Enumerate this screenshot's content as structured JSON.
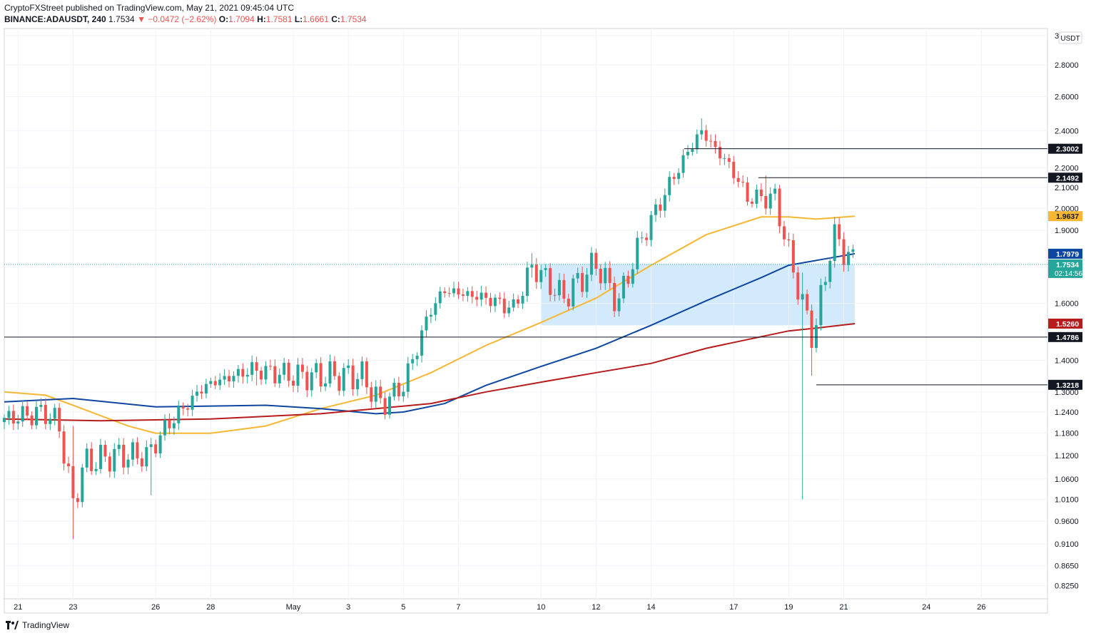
{
  "header": {
    "line1": "CryptoFXStreet published on TradingView.com, May 21, 2021 09:45:04 UTC",
    "symbol": "BINANCE:ADAUSDT, 240",
    "last": "1.7534",
    "change_arrow": "▼",
    "change": "−0.0472 (−2.62%)",
    "o_label": "O:",
    "o": "1.7094",
    "h_label": "H:",
    "h": "1.7581",
    "l_label": "L:",
    "l": "1.6661",
    "c_label": "C:",
    "c": "1.7534"
  },
  "footer": {
    "brand": "TradingView",
    "logo": "tradingview-logo-icon"
  },
  "colors": {
    "up": "#26a69a",
    "down": "#ef5350",
    "ma50": "#f7b733",
    "ma100": "#0d47a1",
    "ma200": "#b71c1c",
    "zone": "#bbdefb",
    "axis_text": "#131722",
    "grid": "#f0f3fa"
  },
  "chart_data": {
    "type": "candlestick",
    "scale": "log",
    "currency_label": "USDT",
    "ylim": [
      0.8,
      3.05
    ],
    "y_ticks": [
      "3.0000",
      "2.8000",
      "2.6000",
      "2.4000",
      "2.2000",
      "2.1000",
      "2.0000",
      "1.9000",
      "1.6000",
      "1.4000",
      "1.3000",
      "1.2400",
      "1.1800",
      "1.1200",
      "1.0600",
      "1.0100",
      "0.9600",
      "0.9100",
      "0.8650",
      "0.8250"
    ],
    "y_tick_values": [
      3.0,
      2.8,
      2.6,
      2.4,
      2.2,
      2.1,
      2.0,
      1.9,
      1.6,
      1.4,
      1.3,
      1.24,
      1.18,
      1.12,
      1.06,
      1.01,
      0.96,
      0.91,
      0.865,
      0.825
    ],
    "x_ticks": [
      {
        "label": "21",
        "day": -9
      },
      {
        "label": "23",
        "day": -7
      },
      {
        "label": "26",
        "day": -4
      },
      {
        "label": "28",
        "day": -2
      },
      {
        "label": "May",
        "day": 1
      },
      {
        "label": "3",
        "day": 3
      },
      {
        "label": "5",
        "day": 5
      },
      {
        "label": "7",
        "day": 7
      },
      {
        "label": "10",
        "day": 10
      },
      {
        "label": "12",
        "day": 12
      },
      {
        "label": "14",
        "day": 14
      },
      {
        "label": "17",
        "day": 17
      },
      {
        "label": "19",
        "day": 19
      },
      {
        "label": "21",
        "day": 21
      },
      {
        "label": "24",
        "day": 24
      },
      {
        "label": "26",
        "day": 26
      }
    ],
    "x_range_days": [
      -9.5,
      28.4
    ],
    "price_levels": [
      {
        "value": "2.3002",
        "price": 2.3002,
        "from_day": 15.2,
        "kind": "level",
        "bg": "#131722",
        "fg": "#ffffff"
      },
      {
        "value": "2.1492",
        "price": 2.1492,
        "from_day": 17.9,
        "kind": "level",
        "bg": "#131722",
        "fg": "#ffffff"
      },
      {
        "value": "1.9637",
        "price": 1.9637,
        "kind": "ma50",
        "bg": "#f7b733",
        "fg": "#131722"
      },
      {
        "value": "1.7979",
        "price": 1.7979,
        "kind": "ma100",
        "bg": "#0d47a1",
        "fg": "#ffffff"
      },
      {
        "value": "1.7534",
        "price": 1.7534,
        "kind": "last",
        "bg": "#26a69a",
        "fg": "#ffffff",
        "countdown": "02:14:56"
      },
      {
        "value": "1.5260",
        "price": 1.526,
        "kind": "ma200",
        "bg": "#b71c1c",
        "fg": "#ffffff"
      },
      {
        "value": "1.4786",
        "price": 1.4786,
        "from_day": -9.5,
        "kind": "level",
        "bg": "#131722",
        "fg": "#ffffff"
      },
      {
        "value": "1.3218",
        "price": 1.3218,
        "from_day": 20.0,
        "kind": "level",
        "bg": "#131722",
        "fg": "#ffffff"
      }
    ],
    "zone": {
      "from_day": 10.0,
      "to_day": 21.4,
      "low": 1.52,
      "high": 1.755
    },
    "candle_anchors": [
      {
        "day": -9.5,
        "price": 1.22
      },
      {
        "day": -8.0,
        "price": 1.24
      },
      {
        "day": -7.5,
        "price": 1.2
      },
      {
        "day": -7.0,
        "price": 1.0
      },
      {
        "day": -6.6,
        "price": 1.1
      },
      {
        "day": -5.5,
        "price": 1.12
      },
      {
        "day": -4.3,
        "price": 1.12
      },
      {
        "day": -3.6,
        "price": 1.2
      },
      {
        "day": -2.2,
        "price": 1.32
      },
      {
        "day": -0.5,
        "price": 1.37
      },
      {
        "day": 1.0,
        "price": 1.35
      },
      {
        "day": 3.5,
        "price": 1.35
      },
      {
        "day": 4.2,
        "price": 1.26
      },
      {
        "day": 5.0,
        "price": 1.32
      },
      {
        "day": 6.0,
        "price": 1.58
      },
      {
        "day": 6.5,
        "price": 1.65
      },
      {
        "day": 8.0,
        "price": 1.62
      },
      {
        "day": 9.0,
        "price": 1.58
      },
      {
        "day": 9.7,
        "price": 1.75
      },
      {
        "day": 10.8,
        "price": 1.62
      },
      {
        "day": 12.0,
        "price": 1.76
      },
      {
        "day": 12.8,
        "price": 1.6
      },
      {
        "day": 13.6,
        "price": 1.85
      },
      {
        "day": 14.8,
        "price": 2.15
      },
      {
        "day": 15.8,
        "price": 2.4
      },
      {
        "day": 16.9,
        "price": 2.2
      },
      {
        "day": 17.5,
        "price": 2.05
      },
      {
        "day": 18.5,
        "price": 2.05
      },
      {
        "day": 19.0,
        "price": 1.8
      },
      {
        "day": 19.5,
        "price": 1.6
      },
      {
        "day": 19.9,
        "price": 1.47
      },
      {
        "day": 20.6,
        "price": 1.88
      },
      {
        "day": 21.4,
        "price": 1.7534
      }
    ],
    "wick_extremes": [
      {
        "day": -7.0,
        "high": 1.2,
        "low": 0.92
      },
      {
        "day": -4.1,
        "high": 1.14,
        "low": 1.02
      },
      {
        "day": -0.3,
        "high": 1.4,
        "low": 1.32
      },
      {
        "day": 9.6,
        "high": 1.8,
        "low": 1.7
      },
      {
        "day": 15.8,
        "high": 2.47,
        "low": 2.35
      },
      {
        "day": 18.1,
        "high": 2.16,
        "low": 2.0
      },
      {
        "day": 19.5,
        "high": 1.72,
        "low": 1.01
      },
      {
        "day": 19.9,
        "high": 1.53,
        "low": 1.35
      },
      {
        "day": 20.6,
        "high": 1.96,
        "low": 1.78
      }
    ],
    "moving_averages": [
      {
        "kind": "ma50",
        "points": [
          [
            -9.5,
            1.3
          ],
          [
            -8,
            1.29
          ],
          [
            -7,
            1.26
          ],
          [
            -5,
            1.2
          ],
          [
            -4,
            1.18
          ],
          [
            -2,
            1.18
          ],
          [
            0,
            1.2
          ],
          [
            2,
            1.25
          ],
          [
            4,
            1.29
          ],
          [
            6,
            1.36
          ],
          [
            8,
            1.45
          ],
          [
            10,
            1.53
          ],
          [
            12,
            1.62
          ],
          [
            14,
            1.75
          ],
          [
            16,
            1.88
          ],
          [
            18,
            1.96
          ],
          [
            19,
            1.96
          ],
          [
            20,
            1.95
          ],
          [
            21.4,
            1.9637
          ]
        ]
      },
      {
        "kind": "ma100",
        "points": [
          [
            -9.5,
            1.27
          ],
          [
            -7,
            1.28
          ],
          [
            -4,
            1.255
          ],
          [
            0,
            1.26
          ],
          [
            2,
            1.25
          ],
          [
            4,
            1.235
          ],
          [
            5,
            1.24
          ],
          [
            6.5,
            1.265
          ],
          [
            8,
            1.32
          ],
          [
            10,
            1.38
          ],
          [
            12,
            1.44
          ],
          [
            14,
            1.52
          ],
          [
            16,
            1.61
          ],
          [
            18,
            1.7
          ],
          [
            19,
            1.75
          ],
          [
            20,
            1.77
          ],
          [
            21.4,
            1.7979
          ]
        ]
      },
      {
        "kind": "ma200",
        "points": [
          [
            -9.5,
            1.22
          ],
          [
            -6,
            1.215
          ],
          [
            -2,
            1.22
          ],
          [
            2,
            1.235
          ],
          [
            6,
            1.265
          ],
          [
            8,
            1.3
          ],
          [
            10,
            1.33
          ],
          [
            12,
            1.36
          ],
          [
            14,
            1.39
          ],
          [
            16,
            1.44
          ],
          [
            18,
            1.48
          ],
          [
            19,
            1.5
          ],
          [
            20,
            1.51
          ],
          [
            21.4,
            1.526
          ]
        ]
      }
    ]
  }
}
